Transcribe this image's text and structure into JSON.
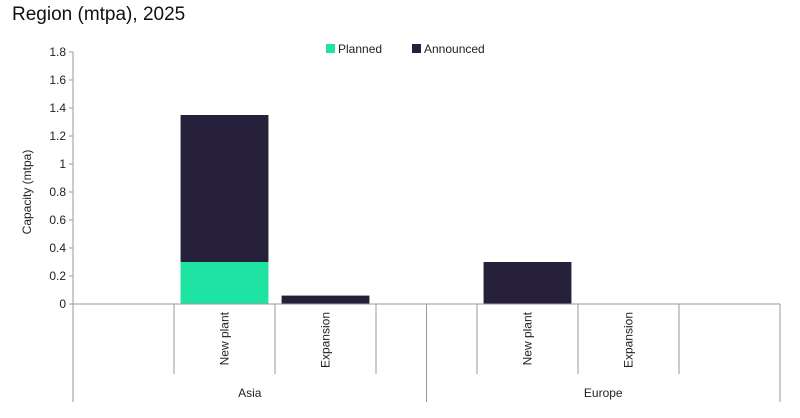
{
  "chart_data": {
    "type": "bar",
    "stacked": true,
    "title": "Region (mtpa), 2025",
    "ylabel": "Capacity (mtpa)",
    "xlabel": "",
    "ylim": [
      0,
      1.8
    ],
    "yticks": [
      "0",
      "0.2",
      "0.4",
      "0.6",
      "0.8",
      "1",
      "1.2",
      "1.4",
      "1.6",
      "1.8"
    ],
    "legend_position": "top-center",
    "groups": [
      {
        "name": "Asia",
        "categories": [
          "New plant",
          "Expansion"
        ]
      },
      {
        "name": "Europe",
        "categories": [
          "New plant",
          "Expansion"
        ]
      }
    ],
    "categories": [
      "New plant",
      "Expansion",
      "New plant",
      "Expansion"
    ],
    "series": [
      {
        "name": "Planned",
        "color": "#1ee3a3",
        "values": [
          0.3,
          0,
          0,
          0
        ]
      },
      {
        "name": "Announced",
        "color": "#26203a",
        "values": [
          1.05,
          0.06,
          0.3,
          0
        ]
      }
    ]
  }
}
